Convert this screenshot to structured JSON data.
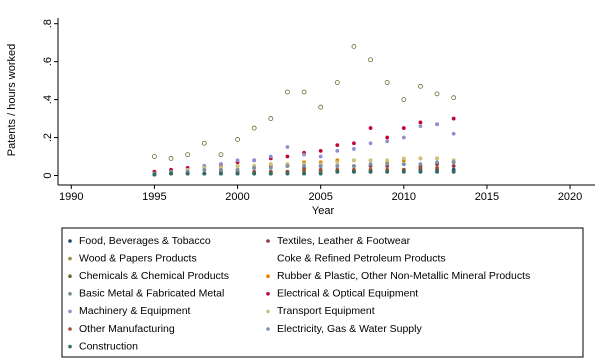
{
  "chart_data": {
    "type": "scatter",
    "x_label": "Year",
    "y_label": "Patents / hours worked",
    "x": [
      1995,
      1996,
      1997,
      1998,
      1999,
      2000,
      2001,
      2002,
      2003,
      2004,
      2005,
      2006,
      2007,
      2008,
      2009,
      2010,
      2011,
      2012,
      2013
    ],
    "xlim": [
      1989.2,
      2021.5
    ],
    "ylim": [
      -0.05,
      0.83
    ],
    "xticks": [
      1990,
      1995,
      2000,
      2005,
      2010,
      2015,
      2020
    ],
    "yticks": [
      0,
      {
        "value": 0.2,
        "label": ".2"
      },
      {
        "value": 0.4,
        "label": ".4"
      },
      {
        "value": 0.6,
        "label": ".6"
      },
      {
        "value": 0.8,
        "label": ".8"
      }
    ],
    "grid": false,
    "series": [
      {
        "name": "Food, Beverages & Tobacco",
        "color": "#1a476f",
        "values": [
          0.005,
          0.01,
          0.01,
          0.01,
          0.01,
          0.01,
          0.01,
          0.01,
          0.02,
          0.02,
          0.02,
          0.02,
          0.02,
          0.02,
          0.02,
          0.03,
          0.03,
          0.03,
          0.03
        ]
      },
      {
        "name": "Textiles, Leather & Footwear",
        "color": "#90353b",
        "values": [
          0.01,
          0.02,
          0.02,
          0.03,
          0.03,
          0.03,
          0.04,
          0.05,
          0.05,
          0.04,
          0.05,
          0.05,
          0.05,
          0.05,
          0.05,
          0.06,
          0.05,
          0.06,
          0.05
        ]
      },
      {
        "name": "Wood & Papers Products",
        "color": "#9c8847",
        "values": [
          0.005,
          0.01,
          0.01,
          0.01,
          0.01,
          0.01,
          0.01,
          0.02,
          0.02,
          0.02,
          0.02,
          0.02,
          0.02,
          0.02,
          0.02,
          0.02,
          0.02,
          0.02,
          0.02
        ]
      },
      {
        "name": "Coke & Refined Petroleum Products",
        "color": null,
        "values": [
          null,
          null,
          null,
          null,
          null,
          null,
          null,
          null,
          null,
          null,
          null,
          null,
          null,
          null,
          null,
          null,
          null,
          null,
          null
        ]
      },
      {
        "name": "Chemicals & Chemical Products",
        "color": "#55752f",
        "values": [
          0.1,
          0.09,
          0.11,
          0.17,
          0.11,
          0.19,
          0.25,
          0.3,
          0.44,
          0.44,
          0.36,
          0.49,
          0.68,
          0.61,
          0.49,
          0.4,
          0.47,
          0.43,
          0.41
        ]
      },
      {
        "name": "Rubber & Plastic, Other Non-Metallic Mineral Products",
        "color": "#e37e00",
        "values": [
          0.02,
          0.02,
          0.03,
          0.04,
          0.05,
          0.05,
          0.05,
          0.06,
          0.06,
          0.07,
          0.07,
          0.08,
          0.08,
          0.08,
          0.07,
          0.08,
          0.09,
          0.09,
          0.08
        ]
      },
      {
        "name": "Basic Metal & Fabricated Metal",
        "color": "#6e8e84",
        "values": [
          0.005,
          0.01,
          0.01,
          0.01,
          0.01,
          0.01,
          0.01,
          0.01,
          0.01,
          0.01,
          0.02,
          0.02,
          0.02,
          0.02,
          0.02,
          0.02,
          0.02,
          0.02,
          0.02
        ]
      },
      {
        "name": "Electrical & Optical Equipment",
        "color": "#c10534",
        "values": [
          0.02,
          0.03,
          0.04,
          0.05,
          0.06,
          0.07,
          0.08,
          0.09,
          0.1,
          0.12,
          0.13,
          0.16,
          0.17,
          0.25,
          0.2,
          0.25,
          0.28,
          0.27,
          0.3
        ]
      },
      {
        "name": "Machinery & Equipment",
        "color": "#938dd2",
        "values": [
          0.01,
          0.02,
          0.03,
          0.05,
          0.06,
          0.08,
          0.08,
          0.1,
          0.15,
          0.11,
          0.1,
          0.13,
          0.14,
          0.17,
          0.18,
          0.2,
          0.26,
          0.27,
          0.22
        ]
      },
      {
        "name": "Transport Equipment",
        "color": "#cac27e",
        "values": [
          0.01,
          0.02,
          0.03,
          0.04,
          0.04,
          0.05,
          0.05,
          0.06,
          0.06,
          0.06,
          0.06,
          0.07,
          0.08,
          0.08,
          0.08,
          0.09,
          0.09,
          0.09,
          0.08
        ]
      },
      {
        "name": "Other Manufacturing",
        "color": "#a0522d",
        "values": [
          0.005,
          0.01,
          0.01,
          0.01,
          0.02,
          0.02,
          0.02,
          0.02,
          0.02,
          0.03,
          0.03,
          0.03,
          0.03,
          0.03,
          0.03,
          0.03,
          0.04,
          0.04,
          0.07
        ]
      },
      {
        "name": "Electricity, Gas & Water Supply",
        "color": "#7b92a8",
        "values": [
          0.01,
          0.02,
          0.02,
          0.03,
          0.03,
          0.03,
          0.04,
          0.04,
          0.05,
          0.05,
          0.05,
          0.05,
          0.05,
          0.06,
          0.06,
          0.06,
          0.06,
          0.07,
          0.07
        ]
      },
      {
        "name": "Construction",
        "color": "#2d6d66",
        "values": [
          0.005,
          0.01,
          0.01,
          0.01,
          0.01,
          0.01,
          0.01,
          0.01,
          0.01,
          0.01,
          0.01,
          0.02,
          0.02,
          0.02,
          0.02,
          0.02,
          0.02,
          0.02,
          0.02
        ]
      }
    ]
  }
}
